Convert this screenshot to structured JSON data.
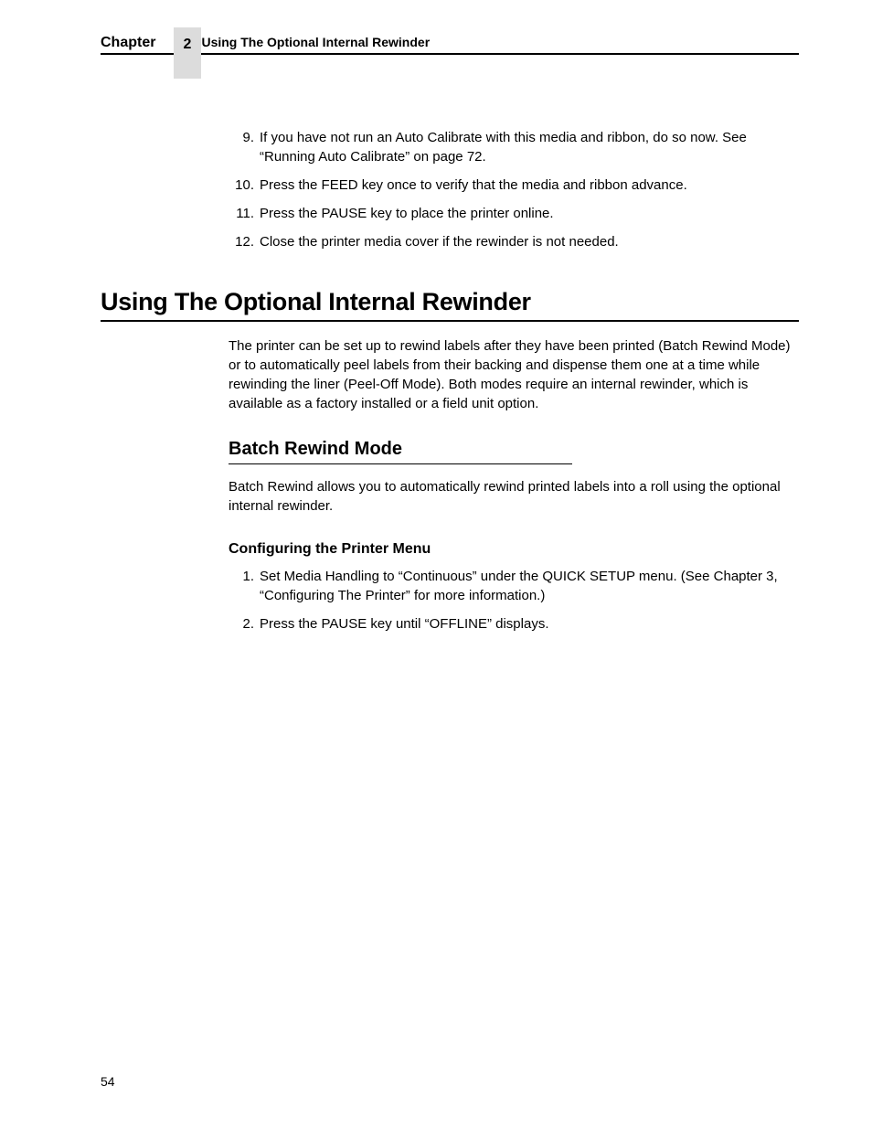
{
  "header": {
    "chapter_label": "Chapter",
    "chapter_number": "2",
    "title": "Using The Optional Internal Rewinder"
  },
  "top_list": [
    {
      "num": "9.",
      "text": "If you have not run an Auto Calibrate with this media and ribbon, do so now. See “Running Auto Calibrate” on page 72."
    },
    {
      "num": "10.",
      "text": "Press the FEED key once to verify that the media and ribbon advance."
    },
    {
      "num": "11.",
      "text": "Press the PAUSE key to place the printer online."
    },
    {
      "num": "12.",
      "text": "Close the printer media cover if the rewinder is not needed."
    }
  ],
  "heading_1": "Using The Optional Internal Rewinder",
  "paragraph_1": "The printer can be set up to rewind labels after they have been printed (Batch Rewind Mode) or to automatically peel labels from their backing and dispense them one at a time while rewinding the liner (Peel-Off Mode). Both modes require an internal rewinder, which is available as a factory installed or a field unit option.",
  "heading_2": "Batch Rewind Mode",
  "paragraph_2": "Batch Rewind allows you to automatically rewind printed labels into a roll using the optional internal rewinder.",
  "heading_3": "Configuring the Printer Menu",
  "config_list": [
    {
      "num": "1.",
      "text": "Set Media Handling to “Continuous” under the QUICK SETUP menu. (See Chapter 3, “Configuring The Printer” for more information.)"
    },
    {
      "num": "2.",
      "text": "Press the PAUSE key until “OFFLINE” displays."
    }
  ],
  "page_number": "54"
}
